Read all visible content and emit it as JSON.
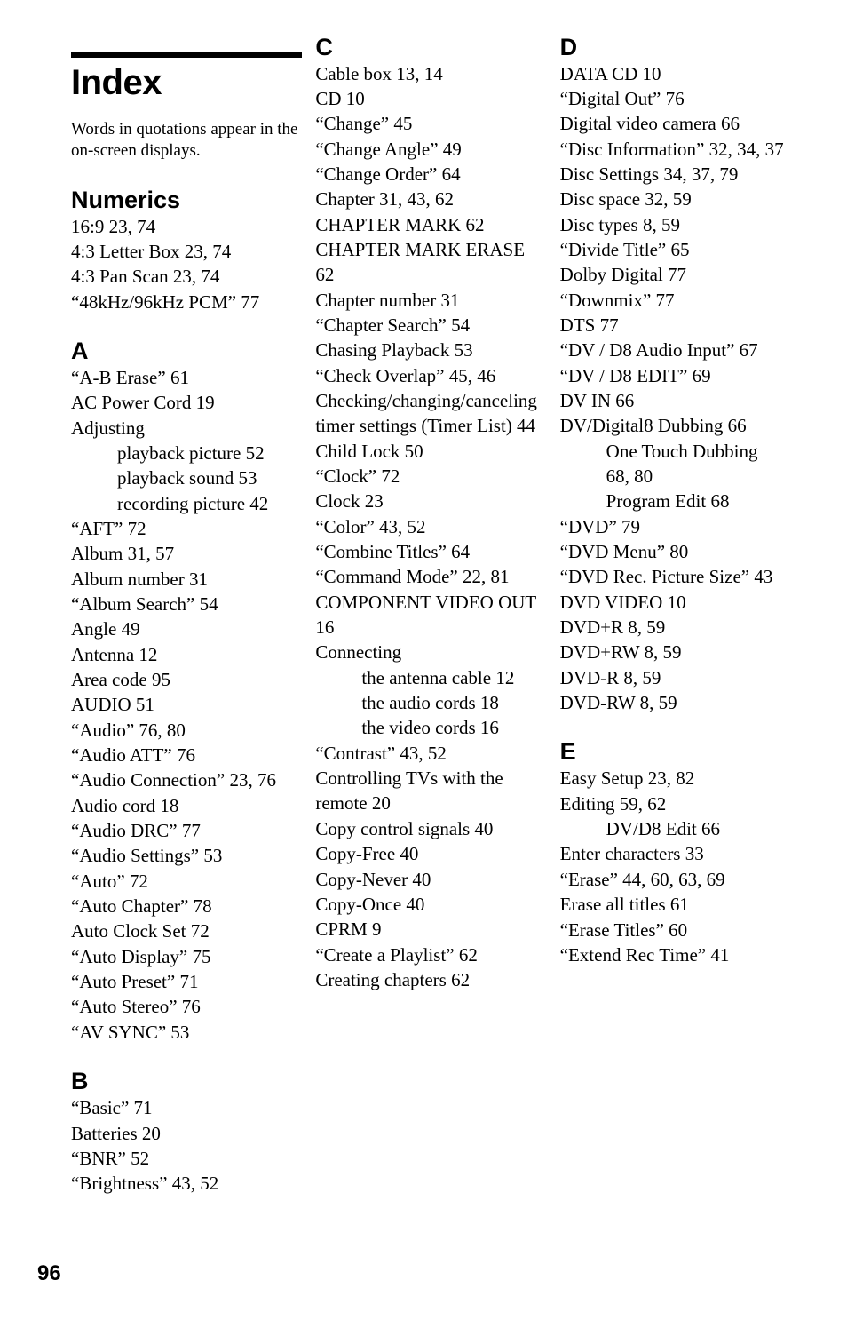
{
  "title": "Index",
  "intro": "Words in quotations appear in the on-screen displays.",
  "pageNumber": "96",
  "sections": {
    "numerics": {
      "heading": "Numerics",
      "entries": [
        "16:9 23, 74",
        "4:3 Letter Box 23, 74",
        "4:3 Pan Scan 23, 74",
        "“48kHz/96kHz PCM” 77"
      ]
    },
    "A": {
      "heading": "A",
      "entries": [
        "“A-B Erase” 61",
        "AC Power Cord 19",
        "Adjusting",
        "playback picture 52",
        "playback sound 53",
        "recording picture 42",
        "“AFT” 72",
        "Album 31, 57",
        "Album number 31",
        "“Album Search” 54",
        "Angle 49",
        "Antenna 12",
        "Area code 95",
        "AUDIO 51",
        "“Audio” 76, 80",
        "“Audio ATT” 76",
        "“Audio Connection” 23, 76",
        "Audio cord 18",
        "“Audio DRC” 77",
        "“Audio Settings” 53",
        "“Auto” 72",
        "“Auto Chapter” 78",
        "Auto Clock Set 72",
        "“Auto Display” 75",
        "“Auto Preset” 71",
        "“Auto Stereo” 76",
        "“AV SYNC” 53"
      ]
    },
    "B": {
      "heading": "B",
      "entries": [
        "“Basic” 71",
        "Batteries 20",
        "“BNR” 52",
        "“Brightness” 43, 52"
      ]
    },
    "C": {
      "heading": "C",
      "entries": [
        "Cable box 13, 14",
        "CD 10",
        "“Change” 45",
        "“Change Angle” 49",
        "“Change Order” 64",
        "Chapter 31, 43, 62",
        "CHAPTER MARK 62",
        "CHAPTER MARK ERASE 62",
        "Chapter number 31",
        "“Chapter Search” 54",
        "Chasing Playback 53",
        "“Check Overlap” 45, 46",
        "Checking/changing/canceling timer settings (Timer List) 44",
        "Child Lock 50",
        "“Clock” 72",
        "Clock 23",
        "“Color” 43, 52",
        "“Combine Titles” 64",
        "“Command Mode” 22, 81",
        "COMPONENT VIDEO OUT 16",
        "Connecting",
        "the antenna cable 12",
        "the audio cords 18",
        "the video cords 16",
        "“Contrast” 43, 52",
        "Controlling TVs with the remote 20",
        "Copy control signals 40",
        "Copy-Free 40",
        "Copy-Never 40",
        "Copy-Once 40",
        "CPRM 9",
        "“Create a Playlist” 62",
        "Creating chapters 62"
      ]
    },
    "D": {
      "heading": "D",
      "entries": [
        "DATA CD 10",
        "“Digital Out” 76",
        "Digital video camera 66",
        "“Disc Information” 32, 34, 37",
        "Disc Settings 34, 37, 79",
        "Disc space 32, 59",
        "Disc types 8, 59",
        "“Divide Title” 65",
        "Dolby Digital 77",
        "“Downmix” 77",
        "DTS 77",
        "“DV / D8 Audio Input” 67",
        "“DV / D8 EDIT” 69",
        "DV IN 66",
        "DV/Digital8 Dubbing 66",
        "One Touch Dubbing 68, 80",
        "Program Edit 68",
        "“DVD” 79",
        "“DVD Menu” 80",
        "“DVD Rec. Picture Size” 43",
        "DVD VIDEO 10",
        "DVD+R 8, 59",
        "DVD+RW 8, 59",
        "DVD-R 8, 59",
        "DVD-RW 8, 59"
      ]
    },
    "E": {
      "heading": "E",
      "entries": [
        "Easy Setup 23, 82",
        "Editing 59, 62",
        "DV/D8 Edit 66",
        "Enter characters 33",
        "“Erase” 44, 60, 63, 69",
        "Erase all titles 61",
        "“Erase Titles” 60",
        "“Extend Rec Time” 41"
      ]
    }
  }
}
